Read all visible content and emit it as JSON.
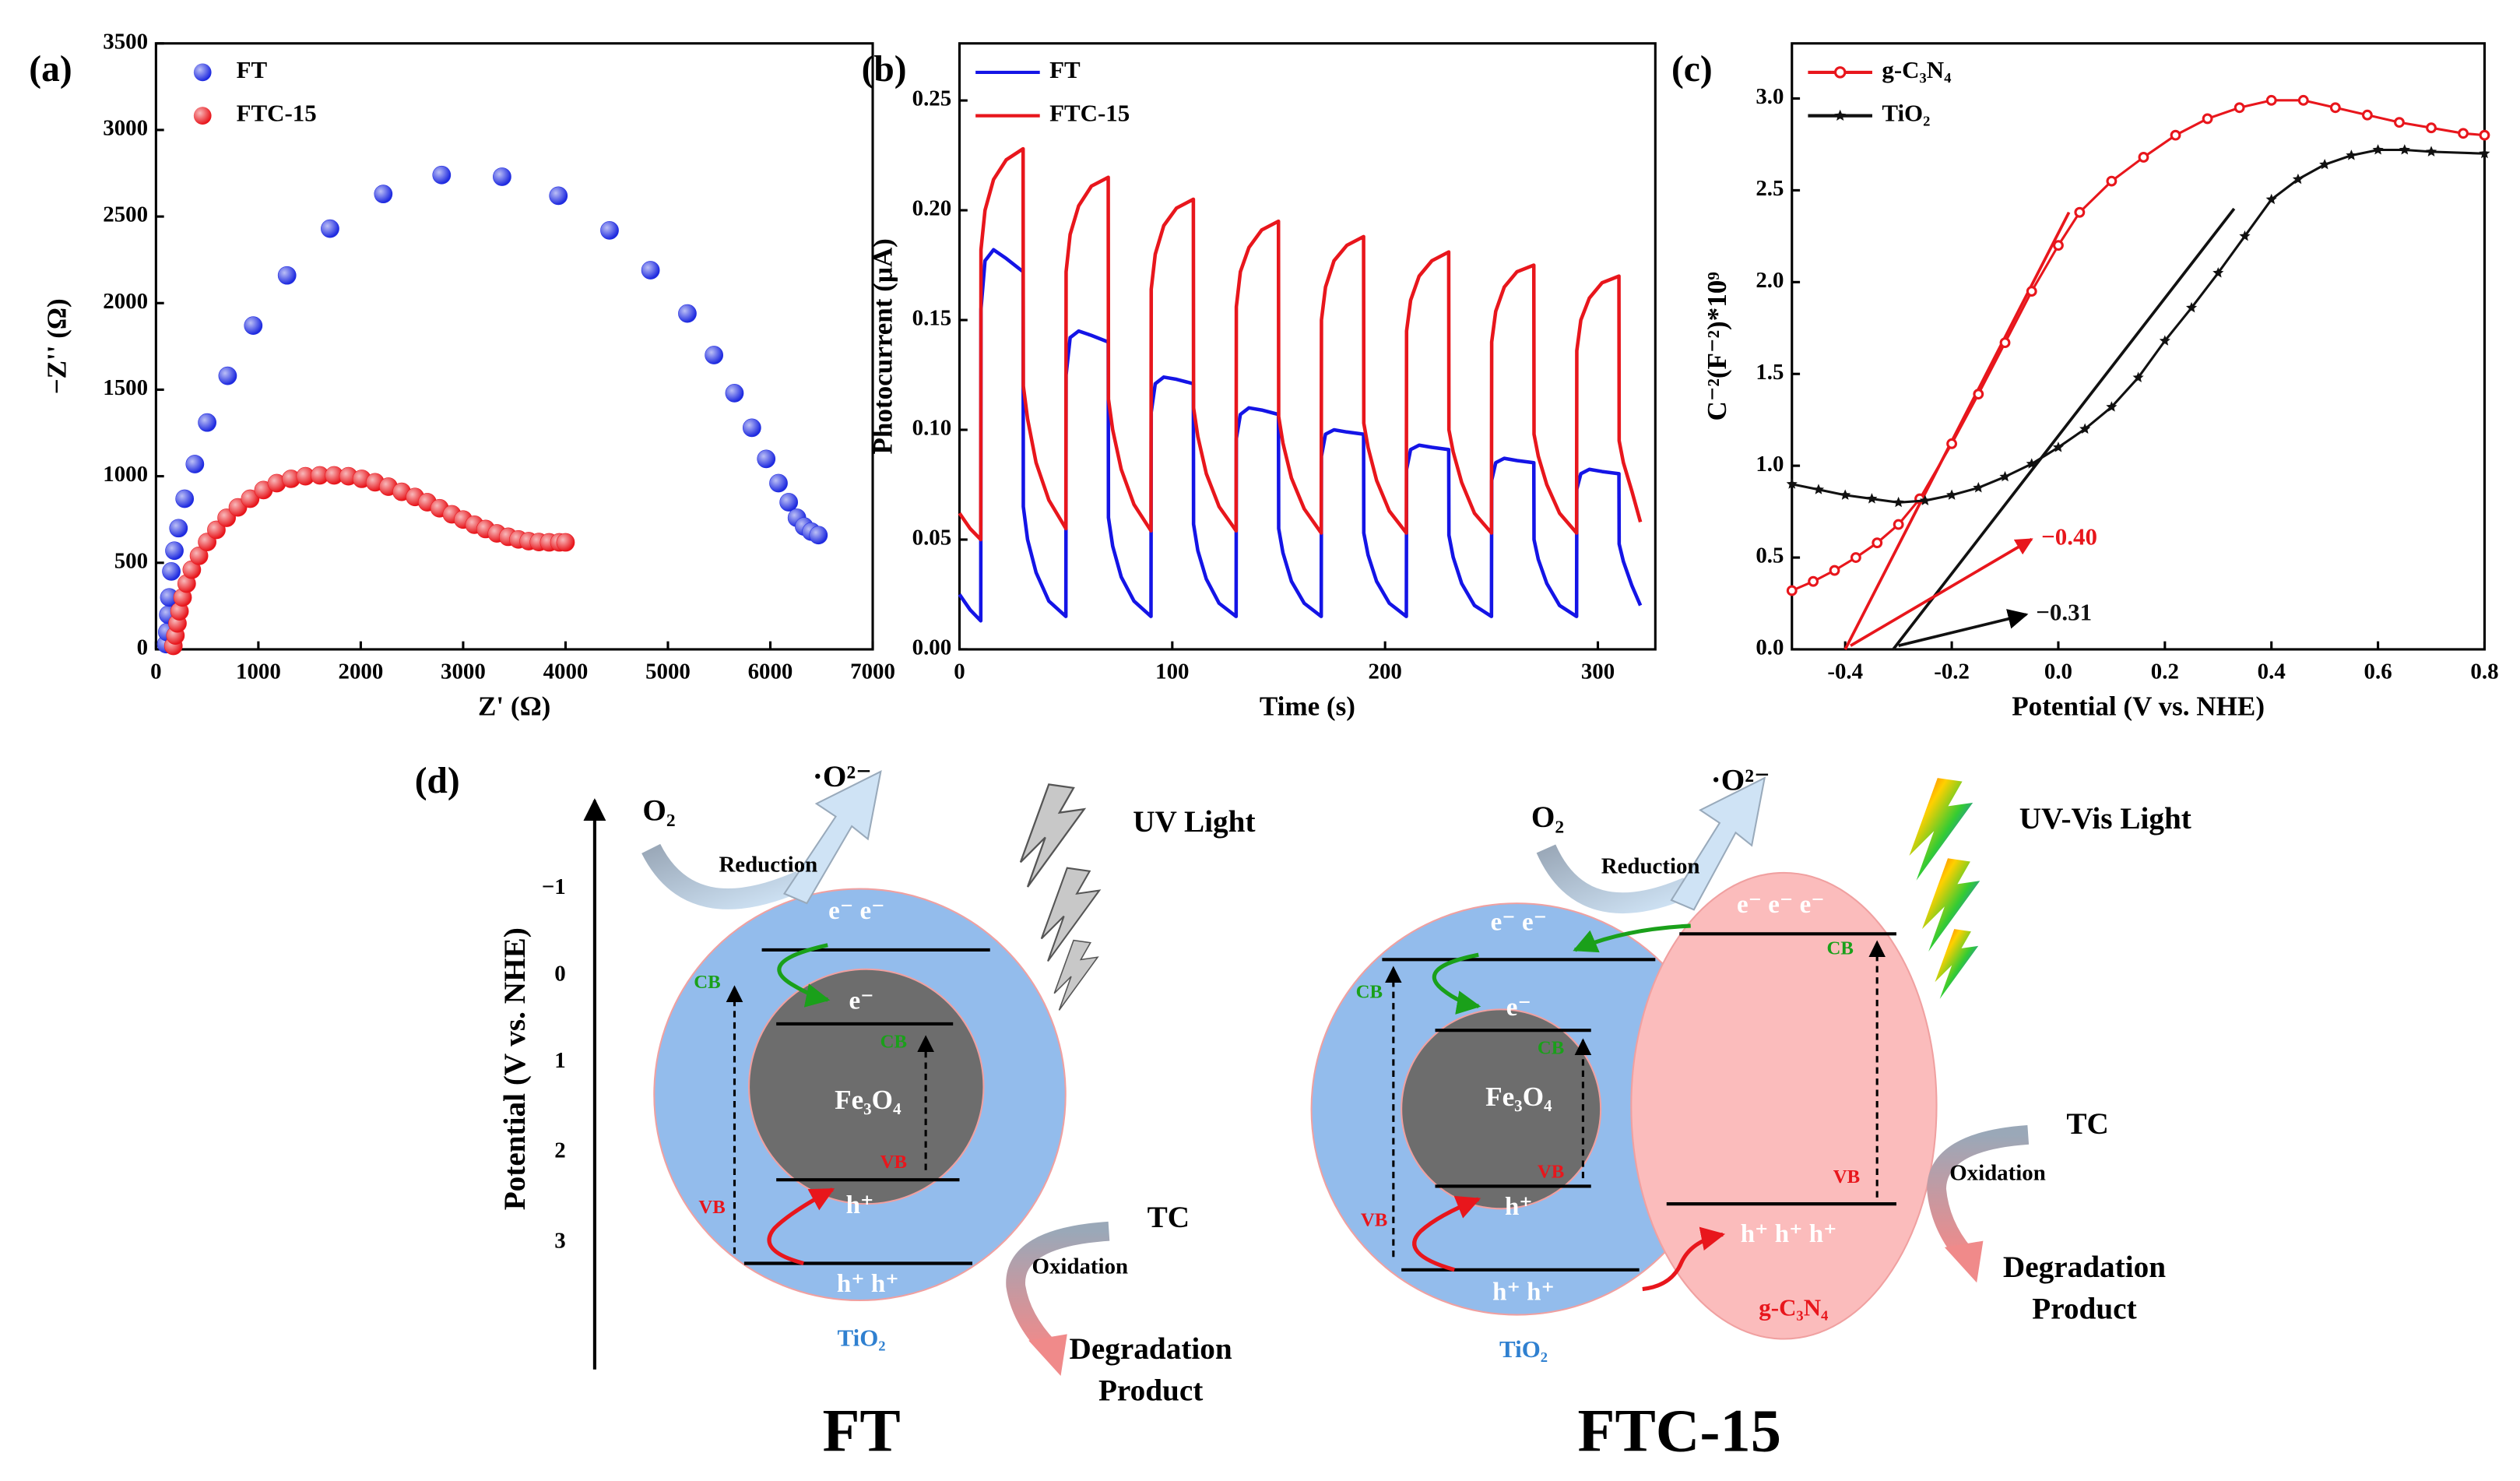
{
  "chart_data": [
    {
      "type": "scatter",
      "panel_label": "(a)",
      "xlabel": "Z' (Ω)",
      "ylabel": "−Z'' (Ω)",
      "xlim": [
        0,
        7000
      ],
      "ylim": [
        0,
        3500
      ],
      "xticks": [
        0,
        1000,
        2000,
        3000,
        4000,
        5000,
        6000,
        7000
      ],
      "yticks": [
        0,
        500,
        1000,
        1500,
        2000,
        2500,
        3000,
        3500
      ],
      "legend": "upper left",
      "series": [
        {
          "name": "FT",
          "color": "#1f2be0",
          "x": [
            100,
            110,
            120,
            130,
            150,
            180,
            220,
            280,
            380,
            500,
            700,
            950,
            1280,
            1700,
            2220,
            2790,
            3380,
            3930,
            4430,
            4830,
            5190,
            5450,
            5650,
            5820,
            5960,
            6080,
            6180,
            6260,
            6330,
            6400,
            6470
          ],
          "values": [
            30,
            100,
            200,
            300,
            450,
            570,
            700,
            870,
            1070,
            1310,
            1580,
            1870,
            2160,
            2430,
            2630,
            2740,
            2730,
            2620,
            2420,
            2190,
            1940,
            1700,
            1480,
            1280,
            1100,
            960,
            850,
            760,
            710,
            680,
            660
          ]
        },
        {
          "name": "FTC-15",
          "color": "#e8161c",
          "x": [
            170,
            190,
            210,
            230,
            260,
            300,
            350,
            420,
            500,
            590,
            690,
            800,
            920,
            1050,
            1180,
            1320,
            1460,
            1600,
            1740,
            1880,
            2010,
            2140,
            2270,
            2400,
            2530,
            2650,
            2770,
            2890,
            3000,
            3110,
            3220,
            3330,
            3440,
            3540,
            3640,
            3740,
            3840,
            3940,
            4000
          ],
          "values": [
            20,
            80,
            150,
            220,
            300,
            380,
            460,
            540,
            620,
            690,
            760,
            820,
            870,
            920,
            960,
            985,
            1000,
            1005,
            1005,
            1000,
            985,
            965,
            940,
            910,
            880,
            850,
            815,
            780,
            750,
            720,
            695,
            670,
            650,
            635,
            625,
            620,
            618,
            618,
            618
          ]
        }
      ]
    },
    {
      "type": "line",
      "panel_label": "(b)",
      "xlabel": "Time (s)",
      "ylabel": "Photocurrent (μA)",
      "xlim": [
        0,
        327
      ],
      "ylim": [
        0,
        0.276
      ],
      "xticks": [
        0,
        100,
        200,
        300
      ],
      "yticks": [
        {
          "value": 0,
          "label": "0.00"
        },
        0.05,
        {
          "value": 0.1,
          "label": "0.10"
        },
        0.15,
        {
          "value": 0.2,
          "label": "0.20"
        },
        0.25
      ],
      "legend": "upper left",
      "series": [
        {
          "name": "FT",
          "color": "#1414e6",
          "x": [
            0,
            5,
            10,
            10.1,
            12,
            16,
            22,
            29.9,
            30,
            32,
            36,
            42,
            50,
            50.1,
            52,
            56,
            62,
            69.9,
            70,
            72,
            76,
            82,
            90,
            90.1,
            92,
            96,
            102,
            109.9,
            110,
            112,
            116,
            122,
            130,
            130.1,
            132,
            136,
            142,
            149.9,
            150,
            152,
            156,
            162,
            170,
            170.1,
            172,
            176,
            182,
            189.9,
            190,
            192,
            196,
            202,
            210,
            210.1,
            212,
            216,
            222,
            229.9,
            230,
            232,
            236,
            242,
            250,
            250.1,
            252,
            256,
            262,
            269.9,
            270,
            272,
            276,
            282,
            290,
            290.1,
            292,
            296,
            302,
            309.9,
            310,
            312,
            316,
            320
          ],
          "values": [
            0.025,
            0.018,
            0.013,
            0.155,
            0.177,
            0.182,
            0.178,
            0.172,
            0.065,
            0.05,
            0.035,
            0.022,
            0.015,
            0.125,
            0.142,
            0.145,
            0.143,
            0.14,
            0.06,
            0.047,
            0.033,
            0.022,
            0.015,
            0.108,
            0.121,
            0.124,
            0.123,
            0.121,
            0.057,
            0.045,
            0.032,
            0.021,
            0.015,
            0.096,
            0.107,
            0.11,
            0.109,
            0.107,
            0.055,
            0.044,
            0.031,
            0.021,
            0.015,
            0.088,
            0.098,
            0.1,
            0.099,
            0.098,
            0.053,
            0.043,
            0.031,
            0.021,
            0.015,
            0.082,
            0.091,
            0.093,
            0.092,
            0.091,
            0.052,
            0.042,
            0.03,
            0.02,
            0.015,
            0.077,
            0.085,
            0.087,
            0.086,
            0.085,
            0.05,
            0.041,
            0.03,
            0.02,
            0.015,
            0.073,
            0.08,
            0.082,
            0.081,
            0.08,
            0.048,
            0.04,
            0.029,
            0.02
          ]
        },
        {
          "name": "FTC-15",
          "color": "#e8161c",
          "x": [
            0,
            5,
            10,
            10.1,
            12,
            16,
            22,
            29.9,
            30,
            32,
            36,
            42,
            50,
            50.1,
            52,
            56,
            62,
            69.9,
            70,
            72,
            76,
            82,
            90,
            90.1,
            92,
            96,
            102,
            109.9,
            110,
            112,
            116,
            122,
            130,
            130.1,
            132,
            136,
            142,
            149.9,
            150,
            152,
            156,
            162,
            170,
            170.1,
            172,
            176,
            182,
            189.9,
            190,
            192,
            196,
            202,
            210,
            210.1,
            212,
            216,
            222,
            229.9,
            230,
            232,
            236,
            242,
            250,
            250.1,
            252,
            256,
            262,
            269.9,
            270,
            272,
            276,
            282,
            290,
            290.1,
            292,
            296,
            302,
            309.9,
            310,
            312,
            316,
            320
          ],
          "values": [
            0.062,
            0.055,
            0.05,
            0.182,
            0.2,
            0.214,
            0.223,
            0.228,
            0.12,
            0.105,
            0.085,
            0.068,
            0.055,
            0.172,
            0.189,
            0.202,
            0.211,
            0.215,
            0.114,
            0.1,
            0.082,
            0.066,
            0.054,
            0.164,
            0.18,
            0.193,
            0.201,
            0.205,
            0.11,
            0.097,
            0.08,
            0.065,
            0.054,
            0.156,
            0.172,
            0.183,
            0.191,
            0.195,
            0.106,
            0.094,
            0.078,
            0.064,
            0.053,
            0.15,
            0.165,
            0.177,
            0.184,
            0.188,
            0.103,
            0.092,
            0.077,
            0.063,
            0.053,
            0.145,
            0.159,
            0.17,
            0.177,
            0.181,
            0.1,
            0.09,
            0.076,
            0.062,
            0.053,
            0.14,
            0.154,
            0.165,
            0.172,
            0.175,
            0.098,
            0.088,
            0.075,
            0.062,
            0.053,
            0.136,
            0.15,
            0.16,
            0.167,
            0.17,
            0.095,
            0.085,
            0.072,
            0.058
          ]
        }
      ]
    },
    {
      "type": "line",
      "panel_label": "(c)",
      "xlabel": "Potential (V vs. NHE)",
      "ylabel": "C⁻²(F⁻²)*10⁹",
      "xlim": [
        -0.5,
        0.8
      ],
      "ylim": [
        0,
        3.3
      ],
      "xticks": [
        -0.4,
        -0.2,
        {
          "value": 0,
          "label": "0.0"
        },
        0.2,
        0.4,
        0.6,
        0.8
      ],
      "yticks": [
        {
          "value": 0,
          "label": "0.0"
        },
        0.5,
        {
          "value": 1,
          "label": "1.0"
        },
        1.5,
        {
          "value": 2,
          "label": "2.0"
        },
        2.5,
        {
          "value": 3,
          "label": "3.0"
        }
      ],
      "legend": "upper left",
      "series": [
        {
          "name": "g-C₃N₄",
          "color": "#e8161c",
          "marker": "circle",
          "x": [
            -0.5,
            -0.46,
            -0.42,
            -0.38,
            -0.34,
            -0.3,
            -0.26,
            -0.2,
            -0.15,
            -0.1,
            -0.05,
            0,
            0.04,
            0.1,
            0.16,
            0.22,
            0.28,
            0.34,
            0.4,
            0.46,
            0.52,
            0.58,
            0.64,
            0.7,
            0.76,
            0.8
          ],
          "values": [
            0.32,
            0.37,
            0.43,
            0.5,
            0.58,
            0.68,
            0.82,
            1.12,
            1.39,
            1.67,
            1.95,
            2.2,
            2.38,
            2.55,
            2.68,
            2.8,
            2.89,
            2.95,
            2.99,
            2.99,
            2.95,
            2.91,
            2.87,
            2.84,
            2.81,
            2.8
          ]
        },
        {
          "name": "TiO₂",
          "color": "#111111",
          "marker": "star",
          "x": [
            -0.5,
            -0.45,
            -0.4,
            -0.35,
            -0.3,
            -0.25,
            -0.2,
            -0.15,
            -0.1,
            -0.05,
            0,
            0.05,
            0.1,
            0.15,
            0.2,
            0.25,
            0.3,
            0.35,
            0.4,
            0.45,
            0.5,
            0.55,
            0.6,
            0.65,
            0.7,
            0.8
          ],
          "values": [
            0.9,
            0.87,
            0.84,
            0.82,
            0.8,
            0.81,
            0.84,
            0.88,
            0.94,
            1.01,
            1.1,
            1.2,
            1.32,
            1.48,
            1.68,
            1.86,
            2.05,
            2.25,
            2.45,
            2.56,
            2.64,
            2.69,
            2.72,
            2.72,
            2.71,
            2.7
          ]
        }
      ],
      "fit_lines": [
        {
          "color": "#e8161c",
          "x": [
            -0.4,
            0.02
          ],
          "values": [
            0,
            2.38
          ]
        },
        {
          "color": "#111111",
          "x": [
            -0.31,
            0.33
          ],
          "values": [
            0,
            2.4
          ]
        }
      ],
      "annotations": [
        {
          "text": "−0.40",
          "color": "#e8161c",
          "x": [
            -0.39,
            -0.05
          ],
          "y": [
            0.02,
            0.6
          ]
        },
        {
          "text": "−0.31",
          "color": "#111111",
          "x": [
            -0.3,
            -0.06
          ],
          "y": [
            0.02,
            0.19
          ]
        }
      ]
    }
  ],
  "diagram": {
    "label": "(d)",
    "axis_label": "Potential (V vs. NHE)",
    "axis_ticks": [
      "−1",
      "0",
      "1",
      "2",
      "3"
    ],
    "ft": {
      "o2": "O₂",
      "radical": "·O²⁻",
      "reduction": "Reduction",
      "light": "UV Light",
      "tio2_cb_e": "e⁻ e⁻",
      "tio2_cb": "CB",
      "core_e": "e⁻",
      "core_cb": "CB",
      "core": "Fe₃O₄",
      "core_vb": "VB",
      "core_h": "h⁺",
      "tio2_vb": "VB",
      "tio2_vb_h": "h⁺ h⁺",
      "tio2": "TiO₂",
      "tc": "TC",
      "oxidation": "Oxidation",
      "product": [
        "Degradation",
        "Product"
      ],
      "name": "FT"
    },
    "ftc": {
      "o2": "O₂",
      "radical": "·O²⁻",
      "reduction": "Reduction",
      "light": "UV-Vis Light",
      "tio2_cb_e": "e⁻ e⁻",
      "gcn_cb_e": "e⁻ e⁻ e⁻",
      "tio2_cb": "CB",
      "gcn_cb": "CB",
      "core_e": "e⁻",
      "core_cb": "CB",
      "core": "Fe₃O₄",
      "core_vb": "VB",
      "core_h": "h⁺",
      "tio2_vb": "VB",
      "tio2_vb_h": "h⁺ h⁺",
      "gcn_vb": "VB",
      "gcn_vb_h": "h⁺ h⁺ h⁺",
      "tio2": "TiO₂",
      "gcn": "g-C₃N₄",
      "tc": "TC",
      "oxidation": "Oxidation",
      "product": [
        "Degradation",
        "Product"
      ],
      "name": "FTC-15"
    }
  }
}
